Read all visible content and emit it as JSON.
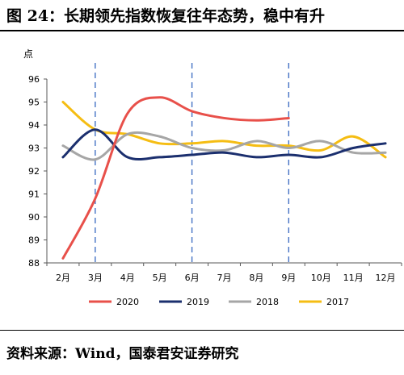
{
  "figure_title": "图 24：长期领先指数恢复往年态势，稳中有升",
  "source": "资料来源：Wind，国泰君安证券研究",
  "chart_data": {
    "type": "line",
    "ylabel": "点",
    "ylim": [
      88,
      96
    ],
    "yticks": [
      88,
      89,
      90,
      91,
      92,
      93,
      94,
      95,
      96
    ],
    "categories": [
      "2月",
      "3月",
      "4月",
      "5月",
      "6月",
      "7月",
      "8月",
      "9月",
      "10月",
      "11月",
      "12月"
    ],
    "vlines_at": [
      "3月",
      "6月",
      "9月"
    ],
    "legend_position": "bottom",
    "series": [
      {
        "name": "2020",
        "color": "#E8504A",
        "values": [
          88.2,
          90.8,
          94.5,
          95.2,
          94.6,
          94.3,
          94.2,
          94.3,
          null,
          null,
          null
        ]
      },
      {
        "name": "2019",
        "color": "#1B2F6E",
        "values": [
          92.6,
          93.8,
          92.6,
          92.6,
          92.7,
          92.8,
          92.6,
          92.7,
          92.6,
          93.0,
          93.2
        ]
      },
      {
        "name": "2018",
        "color": "#A6A6A6",
        "values": [
          93.1,
          92.5,
          93.6,
          93.5,
          93.0,
          92.9,
          93.3,
          93.0,
          93.3,
          92.8,
          92.8
        ]
      },
      {
        "name": "2017",
        "color": "#F5BD13",
        "values": [
          95.0,
          93.8,
          93.6,
          93.2,
          93.2,
          93.3,
          93.1,
          93.1,
          92.9,
          93.5,
          92.6
        ]
      }
    ]
  }
}
